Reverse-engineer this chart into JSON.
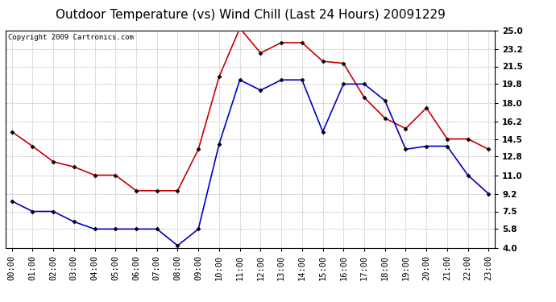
{
  "title": "Outdoor Temperature (vs) Wind Chill (Last 24 Hours) 20091229",
  "copyright": "Copyright 2009 Cartronics.com",
  "x_labels": [
    "00:00",
    "01:00",
    "02:00",
    "03:00",
    "04:00",
    "05:00",
    "06:00",
    "07:00",
    "08:00",
    "09:00",
    "10:00",
    "11:00",
    "12:00",
    "13:00",
    "14:00",
    "15:00",
    "16:00",
    "17:00",
    "18:00",
    "19:00",
    "20:00",
    "21:00",
    "22:00",
    "23:00"
  ],
  "red_temp": [
    15.2,
    13.8,
    12.3,
    11.8,
    11.0,
    11.0,
    9.5,
    9.5,
    9.5,
    13.5,
    20.5,
    25.2,
    22.8,
    23.8,
    23.8,
    22.0,
    21.8,
    18.5,
    16.5,
    15.5,
    17.5,
    14.5,
    14.5,
    13.5
  ],
  "blue_wc": [
    8.5,
    7.5,
    7.5,
    6.5,
    5.8,
    5.8,
    5.8,
    5.8,
    4.2,
    5.8,
    14.0,
    20.2,
    19.2,
    20.2,
    20.2,
    15.2,
    19.8,
    19.8,
    18.2,
    13.5,
    13.8,
    13.8,
    11.0,
    9.2
  ],
  "ylim_min": 4.0,
  "ylim_max": 25.0,
  "yticks": [
    4.0,
    5.8,
    7.5,
    9.2,
    11.0,
    12.8,
    14.5,
    16.2,
    18.0,
    19.8,
    21.5,
    23.2,
    25.0
  ],
  "red_color": "#cc0000",
  "blue_color": "#0000cc",
  "bg_color": "#ffffff",
  "grid_color": "#bbbbbb",
  "title_fontsize": 11,
  "tick_fontsize": 7.5,
  "copyright_fontsize": 6.5
}
